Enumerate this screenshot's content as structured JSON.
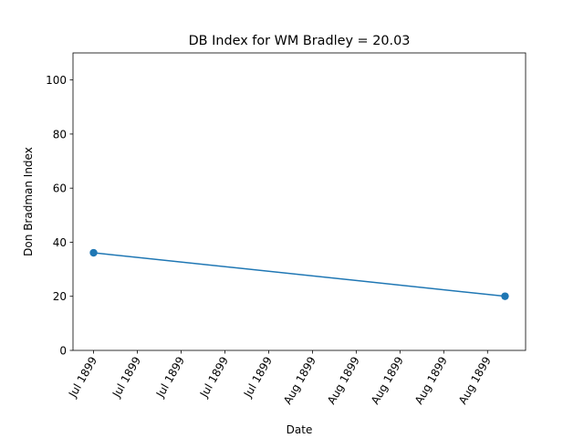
{
  "chart_data": {
    "type": "line",
    "title": "DB Index for WM Bradley = 20.03",
    "xlabel": "Date",
    "ylabel": "Don Bradman Index",
    "ylim": [
      0,
      110
    ],
    "yticks": [
      0,
      20,
      40,
      60,
      80,
      100
    ],
    "x_tick_labels": [
      "Jul 1899",
      "Jul 1899",
      "Jul 1899",
      "Jul 1899",
      "Jul 1899",
      "Aug 1899",
      "Aug 1899",
      "Aug 1899",
      "Aug 1899",
      "Aug 1899"
    ],
    "series": [
      {
        "points": [
          {
            "x": "1899-07-13",
            "y": 36.1
          },
          {
            "x": "1899-08-21",
            "y": 20.03
          }
        ],
        "color": "#1f77b4",
        "marker": "circle"
      }
    ],
    "grid": false,
    "legend": "none"
  }
}
